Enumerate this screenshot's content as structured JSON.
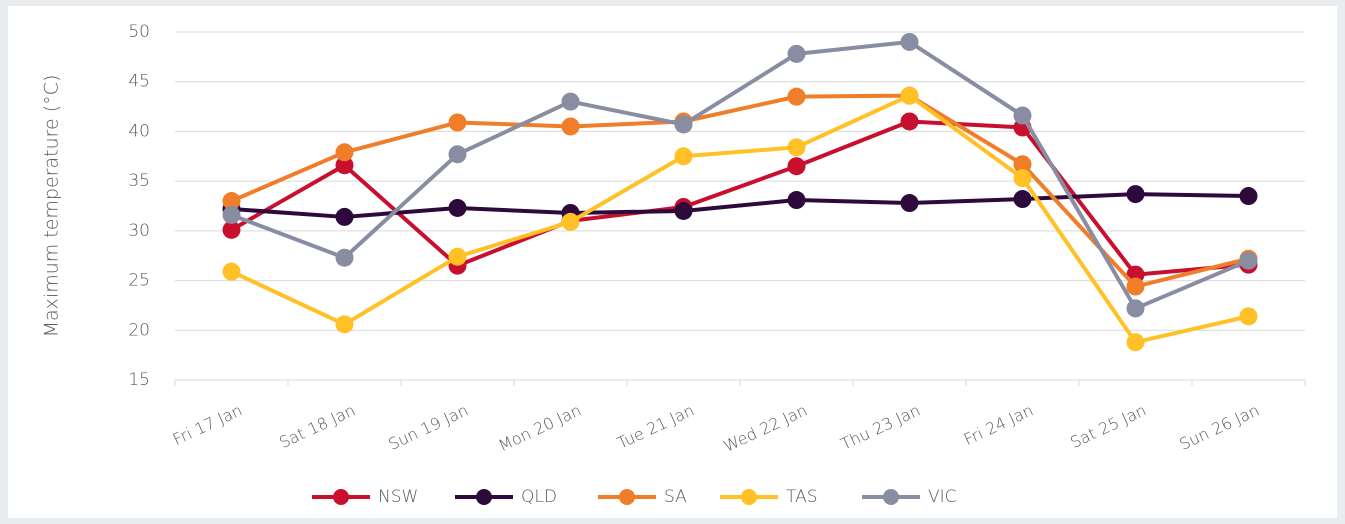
{
  "chart_data": {
    "type": "line",
    "y_label": "Maximum temperature (°C)",
    "categories": [
      "Fri 17 Jan",
      "Sat 18 Jan",
      "Sun 19 Jan",
      "Mon 20 Jan",
      "Tue 21 Jan",
      "Wed 22 Jan",
      "Thu 23 Jan",
      "Fri 24 Jan",
      "Sat 25 Jan",
      "Sun 26 Jan"
    ],
    "series": [
      {
        "name": "NSW",
        "color": "#c8102e",
        "values": [
          30.1,
          36.6,
          26.5,
          31.0,
          32.4,
          36.5,
          41.0,
          40.4,
          25.6,
          26.6
        ]
      },
      {
        "name": "QLD",
        "color": "#2e0a3c",
        "values": [
          32.2,
          31.4,
          32.3,
          31.8,
          32.0,
          33.1,
          32.8,
          33.2,
          33.7,
          33.5
        ]
      },
      {
        "name": "SA",
        "color": "#f07d2a",
        "values": [
          33.0,
          37.9,
          40.9,
          40.5,
          41.0,
          43.5,
          43.6,
          36.7,
          24.4,
          27.2
        ]
      },
      {
        "name": "TAS",
        "color": "#ffc125",
        "values": [
          25.9,
          20.6,
          27.4,
          30.9,
          37.5,
          38.4,
          43.6,
          35.3,
          18.8,
          21.4
        ]
      },
      {
        "name": "VIC",
        "color": "#898da2",
        "values": [
          31.6,
          27.3,
          37.7,
          43.0,
          40.7,
          47.8,
          49.0,
          41.6,
          22.2,
          27.0
        ]
      }
    ],
    "ylim": [
      15,
      50
    ],
    "yticks": [
      15,
      20,
      25,
      30,
      35,
      40,
      45,
      50
    ],
    "grid": true
  }
}
